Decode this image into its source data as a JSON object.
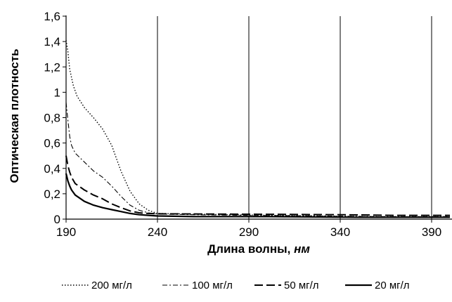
{
  "chart_data": {
    "type": "line",
    "xlabel": "Длина волны, нм",
    "xlabel_parts": [
      "Длина волны, ",
      "нм"
    ],
    "ylabel": "Оптическая плотность",
    "xlim": [
      190,
      400
    ],
    "ylim": [
      0,
      1.6
    ],
    "x_ticks": [
      190,
      240,
      290,
      340,
      390
    ],
    "x_tick_labels": [
      "190",
      "240",
      "290",
      "340",
      "390"
    ],
    "y_ticks": [
      0,
      0.2,
      0.4,
      0.6,
      0.8,
      1,
      1.2,
      1.4,
      1.6
    ],
    "y_tick_labels": [
      "0",
      "0,2",
      "0,4",
      "0,6",
      "0,8",
      "1",
      "1,2",
      "1,4",
      "1,6"
    ],
    "grid": "vertical",
    "legend_position": "bottom",
    "series": [
      {
        "name": "200 мг/л",
        "style": "dotted",
        "x": [
          190,
          191,
          192,
          194,
          196,
          200,
          205,
          210,
          215,
          220,
          225,
          230,
          235,
          240,
          260,
          280,
          300,
          330,
          360,
          400
        ],
        "y": [
          1.41,
          1.32,
          1.18,
          1.05,
          0.97,
          0.88,
          0.8,
          0.71,
          0.58,
          0.38,
          0.22,
          0.12,
          0.07,
          0.045,
          0.04,
          0.035,
          0.03,
          0.025,
          0.02,
          0.02
        ]
      },
      {
        "name": "100 мг/л",
        "style": "dash-dot",
        "x": [
          190,
          191,
          192,
          193,
          195,
          200,
          205,
          210,
          215,
          220,
          225,
          230,
          235,
          240,
          260,
          290,
          330,
          360,
          400
        ],
        "y": [
          0.92,
          0.78,
          0.65,
          0.58,
          0.52,
          0.45,
          0.38,
          0.33,
          0.26,
          0.18,
          0.11,
          0.07,
          0.05,
          0.04,
          0.035,
          0.03,
          0.025,
          0.02,
          0.02
        ]
      },
      {
        "name": "50 мг/л",
        "style": "dashed",
        "x": [
          190,
          191,
          192,
          193,
          195,
          200,
          205,
          210,
          215,
          220,
          225,
          230,
          235,
          240,
          270,
          300,
          340,
          370,
          400
        ],
        "y": [
          0.5,
          0.42,
          0.37,
          0.33,
          0.28,
          0.23,
          0.19,
          0.16,
          0.12,
          0.09,
          0.065,
          0.05,
          0.045,
          0.042,
          0.04,
          0.038,
          0.035,
          0.03,
          0.03
        ]
      },
      {
        "name": "20 мг/л",
        "style": "solid",
        "x": [
          190,
          191,
          192,
          193,
          195,
          200,
          205,
          210,
          215,
          220,
          225,
          230,
          235,
          240,
          260,
          300,
          350,
          400
        ],
        "y": [
          0.36,
          0.3,
          0.26,
          0.23,
          0.19,
          0.14,
          0.11,
          0.09,
          0.075,
          0.06,
          0.045,
          0.035,
          0.03,
          0.025,
          0.02,
          0.02,
          0.015,
          0.015
        ]
      }
    ]
  }
}
